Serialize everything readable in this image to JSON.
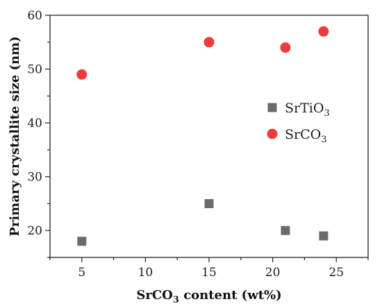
{
  "chart_data": {
    "type": "scatter",
    "xlabel_parts": {
      "pre": "SrCO",
      "sub": "3",
      "post": " content (wt%)"
    },
    "ylabel": "Primary crystallite size (nm)",
    "xlim": [
      2.5,
      27.5
    ],
    "ylim": [
      15,
      60
    ],
    "x_ticks": [
      5,
      10,
      15,
      20,
      25
    ],
    "y_ticks": [
      20,
      30,
      40,
      50,
      60
    ],
    "grid": false,
    "legend_position": "right-middle",
    "series": [
      {
        "name_parts": {
          "pre": "SrTiO",
          "sub": "3"
        },
        "marker": "square",
        "color": "#6b6b6b",
        "x": [
          5,
          15,
          21,
          24
        ],
        "y": [
          18,
          25,
          20,
          19
        ]
      },
      {
        "name_parts": {
          "pre": "SrCO",
          "sub": "3"
        },
        "marker": "circle",
        "color": "#ee3b3b",
        "x": [
          5,
          15,
          21,
          24
        ],
        "y": [
          49,
          55,
          54,
          57
        ]
      }
    ]
  }
}
